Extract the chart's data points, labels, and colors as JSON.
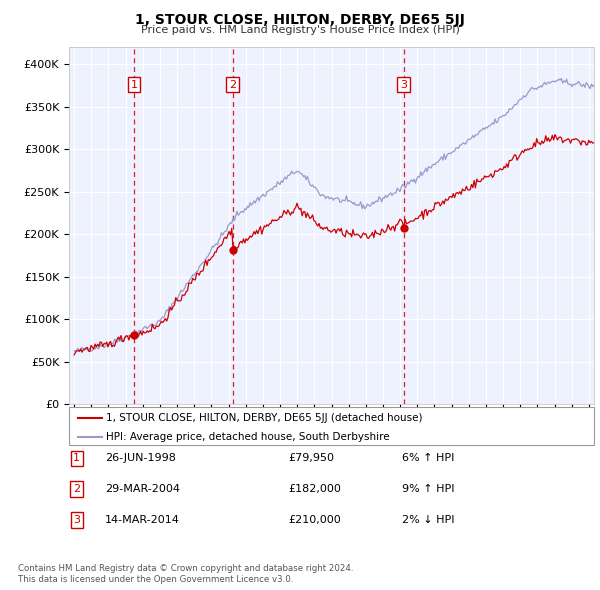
{
  "title": "1, STOUR CLOSE, HILTON, DERBY, DE65 5JJ",
  "subtitle": "Price paid vs. HM Land Registry's House Price Index (HPI)",
  "legend_line1": "1, STOUR CLOSE, HILTON, DERBY, DE65 5JJ (detached house)",
  "legend_line2": "HPI: Average price, detached house, South Derbyshire",
  "transactions": [
    {
      "num": 1,
      "date": "26-JUN-1998",
      "price": 79950,
      "price_str": "£79,950",
      "pct": "6%",
      "dir": "↑",
      "year": 1998.49
    },
    {
      "num": 2,
      "date": "29-MAR-2004",
      "price": 182000,
      "price_str": "£182,000",
      "pct": "9%",
      "dir": "↑",
      "year": 2004.24
    },
    {
      "num": 3,
      "date": "14-MAR-2014",
      "price": 210000,
      "price_str": "£210,000",
      "pct": "2%",
      "dir": "↓",
      "year": 2014.2
    }
  ],
  "footer_line1": "Contains HM Land Registry data © Crown copyright and database right 2024.",
  "footer_line2": "This data is licensed under the Open Government Licence v3.0.",
  "ylim": [
    0,
    420000
  ],
  "yticks": [
    0,
    50000,
    100000,
    150000,
    200000,
    250000,
    300000,
    350000,
    400000
  ],
  "ytick_labels": [
    "£0",
    "£50K",
    "£100K",
    "£150K",
    "£200K",
    "£250K",
    "£300K",
    "£350K",
    "£400K"
  ],
  "xlim_start": 1994.7,
  "xlim_end": 2025.3,
  "xticks": [
    1995,
    1996,
    1997,
    1998,
    1999,
    2000,
    2001,
    2002,
    2003,
    2004,
    2005,
    2006,
    2007,
    2008,
    2009,
    2010,
    2011,
    2012,
    2013,
    2014,
    2015,
    2016,
    2017,
    2018,
    2019,
    2020,
    2021,
    2022,
    2023,
    2024,
    2025
  ],
  "background_color": "#ffffff",
  "plot_bg_color": "#eef2ff",
  "grid_color": "#ffffff",
  "red_line_color": "#cc0000",
  "blue_line_color": "#9999cc",
  "dashed_vline_color": "#cc0000",
  "transaction_box_color": "#cc0000"
}
